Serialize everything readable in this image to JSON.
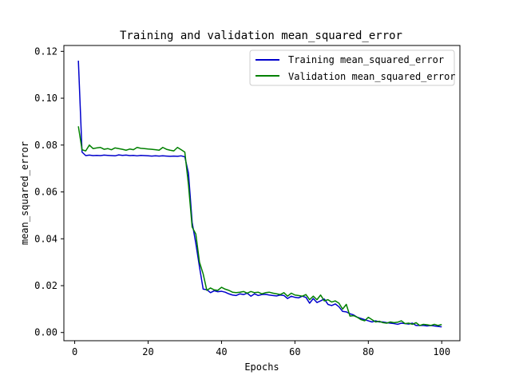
{
  "chart_data": {
    "type": "line",
    "title": "Training and validation mean_squared_error",
    "xlabel": "Epochs",
    "ylabel": "mean_squared_error",
    "xlim": [
      -2.95,
      104.95
    ],
    "ylim": [
      -0.0035,
      0.1225
    ],
    "xticks": [
      0,
      20,
      40,
      60,
      80,
      100
    ],
    "xtick_labels": [
      "0",
      "20",
      "40",
      "60",
      "80",
      "100"
    ],
    "yticks": [
      0.0,
      0.02,
      0.04,
      0.06,
      0.08,
      0.1,
      0.12
    ],
    "ytick_labels": [
      "0.00",
      "0.02",
      "0.04",
      "0.06",
      "0.08",
      "0.10",
      "0.12"
    ],
    "grid": false,
    "legend_position": "top-right",
    "series": [
      {
        "name": "Training mean_squared_error",
        "color": "#0000cc",
        "x": [
          1,
          2,
          3,
          4,
          5,
          6,
          7,
          8,
          9,
          10,
          11,
          12,
          13,
          14,
          15,
          16,
          17,
          18,
          19,
          20,
          21,
          22,
          23,
          24,
          25,
          26,
          27,
          28,
          29,
          30,
          31,
          32,
          33,
          34,
          35,
          36,
          37,
          38,
          39,
          40,
          41,
          42,
          43,
          44,
          45,
          46,
          47,
          48,
          49,
          50,
          51,
          52,
          53,
          54,
          55,
          56,
          57,
          58,
          59,
          60,
          61,
          62,
          63,
          64,
          65,
          66,
          67,
          68,
          69,
          70,
          71,
          72,
          73,
          74,
          75,
          76,
          77,
          78,
          79,
          80,
          81,
          82,
          83,
          84,
          85,
          86,
          87,
          88,
          89,
          90,
          91,
          92,
          93,
          94,
          95,
          96,
          97,
          98,
          99,
          100
        ],
        "y": [
          0.116,
          0.077,
          0.0755,
          0.0757,
          0.0755,
          0.0756,
          0.0755,
          0.0757,
          0.0756,
          0.0755,
          0.0754,
          0.0758,
          0.0756,
          0.0757,
          0.0755,
          0.0756,
          0.0754,
          0.0756,
          0.0755,
          0.0754,
          0.0753,
          0.0754,
          0.0753,
          0.0754,
          0.0753,
          0.0752,
          0.0753,
          0.0752,
          0.0754,
          0.075,
          0.068,
          0.047,
          0.038,
          0.028,
          0.0185,
          0.0183,
          0.017,
          0.0178,
          0.0174,
          0.0176,
          0.0172,
          0.0165,
          0.016,
          0.0158,
          0.0165,
          0.0162,
          0.0168,
          0.0155,
          0.0165,
          0.0158,
          0.0162,
          0.0163,
          0.016,
          0.0158,
          0.0156,
          0.016,
          0.0158,
          0.0145,
          0.0155,
          0.015,
          0.0148,
          0.0155,
          0.015,
          0.0125,
          0.0145,
          0.0128,
          0.0135,
          0.0143,
          0.012,
          0.0115,
          0.0122,
          0.011,
          0.009,
          0.0088,
          0.008,
          0.0075,
          0.0065,
          0.006,
          0.0055,
          0.005,
          0.0045,
          0.005,
          0.0045,
          0.0045,
          0.0042,
          0.004,
          0.0038,
          0.0035,
          0.004,
          0.0038,
          0.0036,
          0.004,
          0.003,
          0.003,
          0.003,
          0.0028,
          0.003,
          0.0028,
          0.0026,
          0.0024
        ]
      },
      {
        "name": "Validation mean_squared_error",
        "color": "#008000",
        "x": [
          1,
          2,
          3,
          4,
          5,
          6,
          7,
          8,
          9,
          10,
          11,
          12,
          13,
          14,
          15,
          16,
          17,
          18,
          19,
          20,
          21,
          22,
          23,
          24,
          25,
          26,
          27,
          28,
          29,
          30,
          31,
          32,
          33,
          34,
          35,
          36,
          37,
          38,
          39,
          40,
          41,
          42,
          43,
          44,
          45,
          46,
          47,
          48,
          49,
          50,
          51,
          52,
          53,
          54,
          55,
          56,
          57,
          58,
          59,
          60,
          61,
          62,
          63,
          64,
          65,
          66,
          67,
          68,
          69,
          70,
          71,
          72,
          73,
          74,
          75,
          76,
          77,
          78,
          79,
          80,
          81,
          82,
          83,
          84,
          85,
          86,
          87,
          88,
          89,
          90,
          91,
          92,
          93,
          94,
          95,
          96,
          97,
          98,
          99,
          100
        ],
        "y": [
          0.088,
          0.078,
          0.0775,
          0.08,
          0.0785,
          0.0788,
          0.079,
          0.0782,
          0.0785,
          0.078,
          0.0788,
          0.0785,
          0.0782,
          0.0778,
          0.0783,
          0.078,
          0.079,
          0.0786,
          0.0785,
          0.0783,
          0.0782,
          0.078,
          0.0778,
          0.079,
          0.0782,
          0.0778,
          0.0775,
          0.079,
          0.078,
          0.077,
          0.063,
          0.045,
          0.042,
          0.03,
          0.025,
          0.018,
          0.019,
          0.0182,
          0.018,
          0.0193,
          0.0185,
          0.018,
          0.0172,
          0.017,
          0.0172,
          0.0175,
          0.0168,
          0.0175,
          0.017,
          0.0172,
          0.0165,
          0.017,
          0.0172,
          0.0168,
          0.0165,
          0.0162,
          0.017,
          0.0155,
          0.0168,
          0.016,
          0.0158,
          0.0155,
          0.0162,
          0.014,
          0.0155,
          0.014,
          0.016,
          0.0135,
          0.014,
          0.013,
          0.0135,
          0.0125,
          0.01,
          0.012,
          0.007,
          0.0072,
          0.0065,
          0.0055,
          0.005,
          0.0065,
          0.0055,
          0.0045,
          0.0048,
          0.0042,
          0.004,
          0.0045,
          0.0042,
          0.0044,
          0.005,
          0.0038,
          0.004,
          0.0035,
          0.0042,
          0.003,
          0.0035,
          0.0033,
          0.003,
          0.0035,
          0.003,
          0.0034
        ]
      }
    ]
  }
}
